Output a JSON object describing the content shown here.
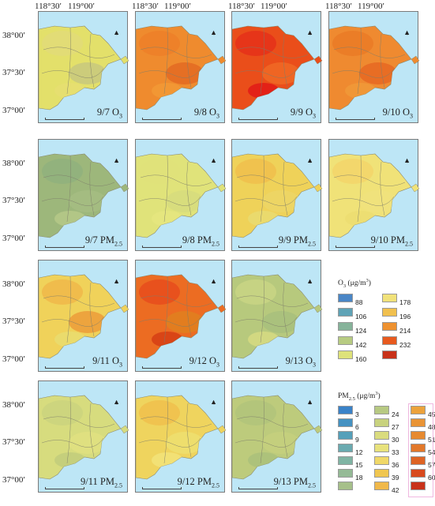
{
  "axis": {
    "lon_ticks": [
      "118°30′",
      "119°00′"
    ],
    "lat_ticks": [
      "38°00′",
      "37°30′",
      "37°00′"
    ]
  },
  "panels": [
    {
      "id": "p1",
      "label_date": "9/7",
      "label_pol": "O",
      "label_sub": "3",
      "row": 0,
      "col": 0,
      "base": "#e3e06a",
      "blobs": [
        "#e2da78",
        "#c8c87e",
        "#e6df72"
      ]
    },
    {
      "id": "p2",
      "label_date": "9/8",
      "label_pol": "O",
      "label_sub": "3",
      "row": 0,
      "col": 1,
      "base": "#ef8b2e",
      "blobs": [
        "#ed7f28",
        "#e36a22",
        "#f29a36"
      ]
    },
    {
      "id": "p3",
      "label_date": "9/9",
      "label_pol": "O",
      "label_sub": "3",
      "row": 0,
      "col": 2,
      "base": "#ea4e1a",
      "blobs": [
        "#e5311a",
        "#f06a26",
        "#e11717"
      ]
    },
    {
      "id": "p4",
      "label_date": "9/10",
      "label_pol": "O",
      "label_sub": "3",
      "row": 0,
      "col": 3,
      "base": "#ef8a30",
      "blobs": [
        "#ea7a26",
        "#e66722",
        "#f09a3a"
      ]
    },
    {
      "id": "p5",
      "label_date": "9/7",
      "label_pol": "PM",
      "label_sub": "2.5",
      "row": 1,
      "col": 0,
      "base": "#9db77b",
      "blobs": [
        "#90b27e",
        "#a6bd82",
        "#b8c98a"
      ]
    },
    {
      "id": "p6",
      "label_date": "9/8",
      "label_pol": "PM",
      "label_sub": "2.5",
      "row": 1,
      "col": 1,
      "base": "#e0e37a",
      "blobs": [
        "#dfe27a",
        "#d6dc7e",
        "#e6e680"
      ]
    },
    {
      "id": "p7",
      "label_date": "9/9",
      "label_pol": "PM",
      "label_sub": "2.5",
      "row": 1,
      "col": 2,
      "base": "#efd259",
      "blobs": [
        "#f0c04c",
        "#ecd666",
        "#e9dc72"
      ]
    },
    {
      "id": "p8",
      "label_date": "9/10",
      "label_pol": "PM",
      "label_sub": "2.5",
      "row": 1,
      "col": 3,
      "base": "#f0e278",
      "blobs": [
        "#f3d56a",
        "#f0e27c",
        "#ecdd70"
      ]
    },
    {
      "id": "p9",
      "label_date": "9/11",
      "label_pol": "O",
      "label_sub": "3",
      "row": 2,
      "col": 0,
      "base": "#f0d25a",
      "blobs": [
        "#f0b84a",
        "#ec9c3a",
        "#e9dd70"
      ]
    },
    {
      "id": "p10",
      "label_date": "9/12",
      "label_pol": "O",
      "label_sub": "3",
      "row": 2,
      "col": 1,
      "base": "#ec6c22",
      "blobs": [
        "#e74c1c",
        "#e1801f",
        "#d43c14"
      ]
    },
    {
      "id": "p11",
      "label_date": "9/13",
      "label_pol": "O",
      "label_sub": "3",
      "row": 2,
      "col": 2,
      "base": "#b7c97d",
      "blobs": [
        "#c9d584",
        "#a8c07c",
        "#d8dc82"
      ]
    },
    {
      "id": "p12",
      "label_date": "9/11",
      "label_pol": "PM",
      "label_sub": "2.5",
      "row": 3,
      "col": 0,
      "base": "#d7dc7e",
      "blobs": [
        "#cbd47e",
        "#e0e080",
        "#c0cc7c"
      ]
    },
    {
      "id": "p13",
      "label_date": "9/12",
      "label_pol": "PM",
      "label_sub": "2.5",
      "row": 3,
      "col": 1,
      "base": "#efd45e",
      "blobs": [
        "#f0c04c",
        "#eddf70",
        "#f3e47a"
      ]
    },
    {
      "id": "p14",
      "label_date": "9/13",
      "label_pol": "PM",
      "label_sub": "2.5",
      "row": 3,
      "col": 2,
      "base": "#bdcb7c",
      "blobs": [
        "#b2c47b",
        "#c6d07e",
        "#a9bf7a"
      ]
    }
  ],
  "legend_o3": {
    "title_main": "O",
    "title_sub": "3",
    "title_unit_open": " (μg/m",
    "title_sup": "3",
    "title_close": ")",
    "col1": [
      {
        "color": "#4a86c6",
        "value": "88"
      },
      {
        "color": "#5fa3b6",
        "value": "106"
      },
      {
        "color": "#86b39a",
        "value": "124"
      },
      {
        "color": "#b7cb82",
        "value": "142"
      },
      {
        "color": "#dee27a",
        "value": "160"
      }
    ],
    "col2": [
      {
        "color": "#f1e27a",
        "value": "178"
      },
      {
        "color": "#f1c04e",
        "value": "196"
      },
      {
        "color": "#ee9230",
        "value": "214"
      },
      {
        "color": "#e85a1e",
        "value": "232"
      },
      {
        "color": "#c8321a",
        "value": ""
      }
    ]
  },
  "legend_pm": {
    "title_main": "PM",
    "title_sub": "2.5",
    "title_unit_open": " (μg/m",
    "title_sup": "3",
    "title_close": ")",
    "col1": [
      {
        "color": "#3a82c8",
        "value": "3"
      },
      {
        "color": "#4592c2",
        "value": "6"
      },
      {
        "color": "#55a0ba",
        "value": "9"
      },
      {
        "color": "#6aaab0",
        "value": "12"
      },
      {
        "color": "#80b4a4",
        "value": "15"
      },
      {
        "color": "#95ba96",
        "value": "18"
      },
      {
        "color": "#a6c08a",
        "value": ""
      }
    ],
    "col2": [
      {
        "color": "#b7c982",
        "value": "24"
      },
      {
        "color": "#c8d27e",
        "value": "27"
      },
      {
        "color": "#dadc7e",
        "value": "30"
      },
      {
        "color": "#e8e27c",
        "value": "33"
      },
      {
        "color": "#f0d868",
        "value": "36"
      },
      {
        "color": "#f0c650",
        "value": "39"
      },
      {
        "color": "#f0b84a",
        "value": "42"
      }
    ],
    "col3": [
      {
        "color": "#eca23c",
        "value": "45"
      },
      {
        "color": "#e99436",
        "value": "48"
      },
      {
        "color": "#e68a30",
        "value": "51"
      },
      {
        "color": "#e2782a",
        "value": "54"
      },
      {
        "color": "#de6424",
        "value": "57"
      },
      {
        "color": "#d84a1e",
        "value": "60"
      },
      {
        "color": "#c8321a",
        "value": ""
      }
    ]
  }
}
